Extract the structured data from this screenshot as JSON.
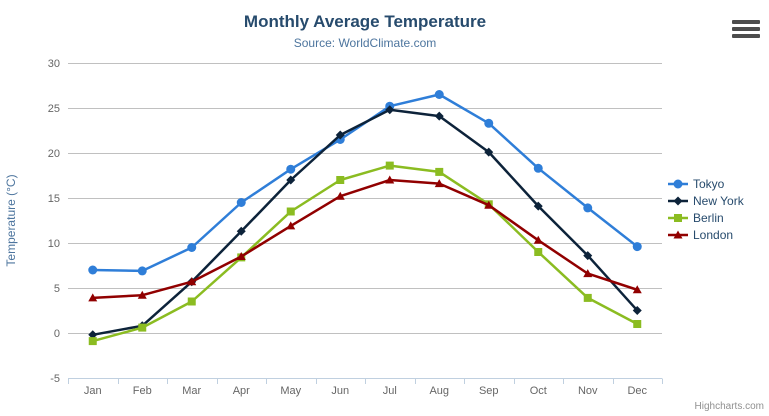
{
  "chart_data": {
    "type": "line",
    "title": "Monthly Average Temperature",
    "subtitle": "Source: WorldClimate.com",
    "categories": [
      "Jan",
      "Feb",
      "Mar",
      "Apr",
      "May",
      "Jun",
      "Jul",
      "Aug",
      "Sep",
      "Oct",
      "Nov",
      "Dec"
    ],
    "xlabel": "",
    "ylabel": "Temperature (°C)",
    "ylim": [
      -5,
      30
    ],
    "yticks": [
      -5,
      0,
      5,
      10,
      15,
      20,
      25,
      30
    ],
    "grid": true,
    "legend_position": "right",
    "series": [
      {
        "name": "Tokyo",
        "color": "#2f7ed8",
        "marker": "circle",
        "values": [
          7.0,
          6.9,
          9.5,
          14.5,
          18.2,
          21.5,
          25.2,
          26.5,
          23.3,
          18.3,
          13.9,
          9.6
        ]
      },
      {
        "name": "New York",
        "color": "#0d233a",
        "marker": "diamond",
        "values": [
          -0.2,
          0.8,
          5.7,
          11.3,
          17.0,
          22.0,
          24.8,
          24.1,
          20.1,
          14.1,
          8.6,
          2.5
        ]
      },
      {
        "name": "Berlin",
        "color": "#8bbc21",
        "marker": "square",
        "values": [
          -0.9,
          0.6,
          3.5,
          8.4,
          13.5,
          17.0,
          18.6,
          17.9,
          14.3,
          9.0,
          3.9,
          1.0
        ]
      },
      {
        "name": "London",
        "color": "#910000",
        "marker": "triangle",
        "values": [
          3.9,
          4.2,
          5.7,
          8.5,
          11.9,
          15.2,
          17.0,
          16.6,
          14.2,
          10.3,
          6.6,
          4.8
        ]
      }
    ]
  },
  "colors": {
    "title": "#274b6d",
    "subtitle": "#4d759e",
    "grid_line": "#C0C0C0",
    "axis_line": "#C0D0E0",
    "axis_label": "#666666",
    "axis_title": "#4d759e",
    "legend_text": "#274b6d",
    "credits_text": "#909090",
    "context_button": "#4d4d4d",
    "background": "#FFFFFF"
  },
  "credits": "Highcharts.com"
}
